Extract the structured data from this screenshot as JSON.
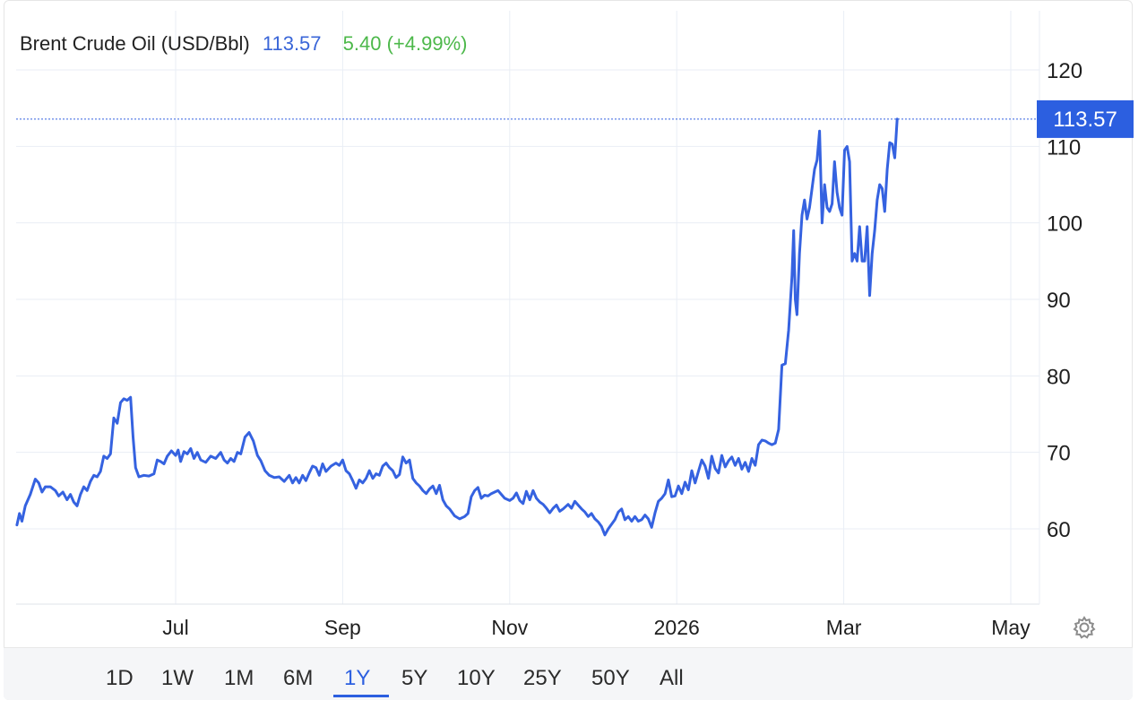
{
  "header": {
    "name": "Brent Crude Oil (USD/Bbl)",
    "price": "113.57",
    "change": "5.40 (+4.99%)"
  },
  "colors": {
    "line": "#3562e0",
    "price_text": "#3a66d8",
    "change_text": "#4cb84a",
    "badge_bg": "#2c5fe0",
    "grid": "#e9eef5",
    "axis_text": "#1f1f1f"
  },
  "price_badge": "113.57",
  "ranges": [
    "1D",
    "1W",
    "1M",
    "6M",
    "1Y",
    "5Y",
    "10Y",
    "25Y",
    "50Y",
    "All"
  ],
  "active_range": "1Y",
  "icons": {
    "settings": "gear-icon"
  },
  "chart_data": {
    "type": "line",
    "title": "Brent Crude Oil (USD/Bbl)",
    "ylim": [
      50,
      123
    ],
    "y_ticks": [
      60,
      70,
      80,
      90,
      100,
      110,
      120
    ],
    "x_ticks": [
      {
        "label": "Jul",
        "x": 1.0
      },
      {
        "label": "Sep",
        "x": 3.0
      },
      {
        "label": "Nov",
        "x": 5.0
      },
      {
        "label": "2026",
        "x": 7.0
      },
      {
        "label": "Mar",
        "x": 9.0
      },
      {
        "label": "May",
        "x": 11.0
      }
    ],
    "xlim": [
      -0.9,
      11.3
    ],
    "grid": true,
    "current_value": 113.57,
    "series": [
      {
        "values": [
          [
            -0.9,
            60.5
          ],
          [
            -0.87,
            62.0
          ],
          [
            -0.84,
            61.0
          ],
          [
            -0.8,
            63.0
          ],
          [
            -0.74,
            64.5
          ],
          [
            -0.68,
            66.5
          ],
          [
            -0.64,
            66.0
          ],
          [
            -0.6,
            64.8
          ],
          [
            -0.56,
            65.5
          ],
          [
            -0.5,
            65.5
          ],
          [
            -0.44,
            65.0
          ],
          [
            -0.4,
            64.3
          ],
          [
            -0.35,
            64.8
          ],
          [
            -0.3,
            63.8
          ],
          [
            -0.26,
            64.5
          ],
          [
            -0.22,
            63.5
          ],
          [
            -0.18,
            63.0
          ],
          [
            -0.14,
            64.5
          ],
          [
            -0.1,
            65.5
          ],
          [
            -0.06,
            65.0
          ],
          [
            -0.02,
            66.2
          ],
          [
            0.02,
            67.0
          ],
          [
            0.06,
            66.8
          ],
          [
            0.1,
            67.5
          ],
          [
            0.14,
            69.5
          ],
          [
            0.18,
            69.2
          ],
          [
            0.22,
            69.8
          ],
          [
            0.26,
            74.5
          ],
          [
            0.3,
            73.8
          ],
          [
            0.34,
            76.5
          ],
          [
            0.38,
            77.0
          ],
          [
            0.42,
            76.8
          ],
          [
            0.46,
            77.2
          ],
          [
            0.49,
            72.0
          ],
          [
            0.52,
            68.0
          ],
          [
            0.56,
            66.8
          ],
          [
            0.62,
            67.0
          ],
          [
            0.68,
            66.9
          ],
          [
            0.74,
            67.2
          ],
          [
            0.78,
            69.0
          ],
          [
            0.82,
            68.8
          ],
          [
            0.86,
            68.5
          ],
          [
            0.9,
            69.5
          ],
          [
            0.95,
            70.2
          ],
          [
            1.0,
            69.6
          ],
          [
            1.03,
            70.3
          ],
          [
            1.06,
            68.8
          ],
          [
            1.1,
            70.1
          ],
          [
            1.14,
            69.8
          ],
          [
            1.18,
            70.5
          ],
          [
            1.22,
            69.2
          ],
          [
            1.26,
            70.0
          ],
          [
            1.3,
            69.0
          ],
          [
            1.36,
            68.7
          ],
          [
            1.42,
            69.5
          ],
          [
            1.48,
            69.2
          ],
          [
            1.54,
            70.0
          ],
          [
            1.58,
            69.0
          ],
          [
            1.62,
            68.6
          ],
          [
            1.66,
            69.2
          ],
          [
            1.7,
            68.8
          ],
          [
            1.74,
            70.0
          ],
          [
            1.78,
            69.8
          ],
          [
            1.83,
            72.0
          ],
          [
            1.88,
            72.6
          ],
          [
            1.93,
            71.5
          ],
          [
            1.98,
            69.6
          ],
          [
            2.02,
            68.9
          ],
          [
            2.07,
            67.6
          ],
          [
            2.12,
            67.0
          ],
          [
            2.18,
            66.7
          ],
          [
            2.24,
            66.8
          ],
          [
            2.3,
            66.2
          ],
          [
            2.36,
            67.0
          ],
          [
            2.4,
            66.0
          ],
          [
            2.44,
            66.7
          ],
          [
            2.48,
            66.0
          ],
          [
            2.52,
            67.0
          ],
          [
            2.56,
            66.3
          ],
          [
            2.6,
            67.3
          ],
          [
            2.64,
            68.2
          ],
          [
            2.68,
            68.0
          ],
          [
            2.72,
            67.0
          ],
          [
            2.76,
            68.5
          ],
          [
            2.8,
            67.5
          ],
          [
            2.86,
            68.2
          ],
          [
            2.92,
            68.6
          ],
          [
            2.96,
            68.3
          ],
          [
            3.0,
            69.0
          ],
          [
            3.04,
            67.6
          ],
          [
            3.08,
            67.2
          ],
          [
            3.12,
            66.3
          ],
          [
            3.16,
            65.3
          ],
          [
            3.2,
            66.4
          ],
          [
            3.24,
            66.0
          ],
          [
            3.28,
            66.6
          ],
          [
            3.32,
            67.6
          ],
          [
            3.36,
            66.6
          ],
          [
            3.4,
            67.2
          ],
          [
            3.44,
            67.0
          ],
          [
            3.48,
            68.2
          ],
          [
            3.52,
            68.6
          ],
          [
            3.56,
            68.0
          ],
          [
            3.6,
            67.6
          ],
          [
            3.64,
            66.7
          ],
          [
            3.68,
            67.1
          ],
          [
            3.72,
            69.4
          ],
          [
            3.76,
            68.6
          ],
          [
            3.8,
            69.0
          ],
          [
            3.84,
            66.6
          ],
          [
            3.88,
            66.0
          ],
          [
            3.92,
            65.6
          ],
          [
            3.96,
            65.0
          ],
          [
            4.0,
            64.6
          ],
          [
            4.04,
            65.2
          ],
          [
            4.08,
            65.6
          ],
          [
            4.12,
            64.6
          ],
          [
            4.16,
            65.7
          ],
          [
            4.2,
            63.8
          ],
          [
            4.24,
            63.0
          ],
          [
            4.28,
            62.6
          ],
          [
            4.34,
            61.7
          ],
          [
            4.4,
            61.3
          ],
          [
            4.46,
            61.6
          ],
          [
            4.5,
            62.0
          ],
          [
            4.54,
            64.2
          ],
          [
            4.58,
            65.0
          ],
          [
            4.62,
            65.4
          ],
          [
            4.66,
            64.0
          ],
          [
            4.7,
            64.4
          ],
          [
            4.74,
            64.3
          ],
          [
            4.78,
            64.6
          ],
          [
            4.82,
            64.8
          ],
          [
            4.86,
            65.0
          ],
          [
            4.9,
            64.5
          ],
          [
            4.94,
            64.0
          ],
          [
            5.0,
            63.7
          ],
          [
            5.04,
            64.0
          ],
          [
            5.08,
            64.7
          ],
          [
            5.12,
            63.7
          ],
          [
            5.16,
            63.3
          ],
          [
            5.2,
            64.9
          ],
          [
            5.24,
            63.8
          ],
          [
            5.28,
            65.0
          ],
          [
            5.32,
            64.0
          ],
          [
            5.36,
            63.5
          ],
          [
            5.4,
            63.2
          ],
          [
            5.44,
            62.7
          ],
          [
            5.48,
            62.1
          ],
          [
            5.52,
            62.7
          ],
          [
            5.56,
            63.1
          ],
          [
            5.6,
            62.3
          ],
          [
            5.64,
            62.6
          ],
          [
            5.7,
            63.2
          ],
          [
            5.74,
            62.7
          ],
          [
            5.78,
            63.6
          ],
          [
            5.82,
            63.1
          ],
          [
            5.86,
            62.6
          ],
          [
            5.9,
            62.2
          ],
          [
            5.94,
            61.6
          ],
          [
            5.98,
            62.0
          ],
          [
            6.02,
            61.3
          ],
          [
            6.06,
            60.9
          ],
          [
            6.1,
            60.3
          ],
          [
            6.14,
            59.2
          ],
          [
            6.18,
            60.0
          ],
          [
            6.22,
            60.6
          ],
          [
            6.26,
            61.2
          ],
          [
            6.3,
            62.2
          ],
          [
            6.34,
            62.6
          ],
          [
            6.38,
            61.2
          ],
          [
            6.42,
            61.6
          ],
          [
            6.46,
            61.0
          ],
          [
            6.5,
            61.6
          ],
          [
            6.54,
            61.0
          ],
          [
            6.58,
            61.2
          ],
          [
            6.62,
            61.8
          ],
          [
            6.66,
            61.3
          ],
          [
            6.7,
            60.2
          ],
          [
            6.74,
            62.1
          ],
          [
            6.78,
            63.6
          ],
          [
            6.82,
            64.0
          ],
          [
            6.86,
            64.6
          ],
          [
            6.9,
            66.4
          ],
          [
            6.94,
            64.2
          ],
          [
            6.98,
            64.3
          ],
          [
            7.02,
            65.6
          ],
          [
            7.06,
            64.6
          ],
          [
            7.1,
            66.1
          ],
          [
            7.14,
            65.1
          ],
          [
            7.18,
            67.6
          ],
          [
            7.22,
            66.0
          ],
          [
            7.26,
            67.5
          ],
          [
            7.3,
            69.0
          ],
          [
            7.34,
            68.2
          ],
          [
            7.38,
            66.6
          ],
          [
            7.42,
            69.5
          ],
          [
            7.46,
            67.9
          ],
          [
            7.5,
            67.3
          ],
          [
            7.54,
            69.6
          ],
          [
            7.58,
            68.1
          ],
          [
            7.62,
            68.9
          ],
          [
            7.66,
            69.4
          ],
          [
            7.7,
            68.3
          ],
          [
            7.74,
            69.2
          ],
          [
            7.78,
            67.8
          ],
          [
            7.82,
            68.7
          ],
          [
            7.86,
            67.5
          ],
          [
            7.9,
            69.2
          ],
          [
            7.94,
            68.3
          ],
          [
            7.98,
            71.0
          ],
          [
            8.02,
            71.6
          ],
          [
            8.06,
            71.5
          ],
          [
            8.1,
            71.2
          ],
          [
            8.14,
            71.0
          ],
          [
            8.18,
            71.2
          ],
          [
            8.22,
            73.0
          ],
          [
            8.26,
            81.4
          ],
          [
            8.3,
            81.6
          ],
          [
            8.34,
            86.0
          ],
          [
            8.38,
            93.0
          ],
          [
            8.4,
            99.0
          ],
          [
            8.42,
            90.0
          ],
          [
            8.44,
            88.0
          ],
          [
            8.47,
            96.0
          ],
          [
            8.5,
            101.0
          ],
          [
            8.53,
            103.0
          ],
          [
            8.56,
            100.5
          ],
          [
            8.59,
            102.0
          ],
          [
            8.62,
            104.5
          ],
          [
            8.65,
            107.0
          ],
          [
            8.68,
            108.2
          ],
          [
            8.71,
            112.0
          ],
          [
            8.74,
            100.0
          ],
          [
            8.77,
            105.0
          ],
          [
            8.8,
            102.0
          ],
          [
            8.83,
            101.5
          ],
          [
            8.86,
            102.5
          ],
          [
            8.89,
            108.0
          ],
          [
            8.92,
            104.0
          ],
          [
            8.95,
            102.0
          ],
          [
            8.98,
            101.0
          ],
          [
            9.01,
            109.5
          ],
          [
            9.04,
            110.0
          ],
          [
            9.07,
            108.0
          ],
          [
            9.1,
            95.0
          ],
          [
            9.13,
            96.0
          ],
          [
            9.16,
            95.0
          ],
          [
            9.19,
            99.5
          ],
          [
            9.22,
            95.0
          ],
          [
            9.25,
            95.0
          ],
          [
            9.28,
            99.5
          ],
          [
            9.31,
            90.5
          ],
          [
            9.34,
            96.0
          ],
          [
            9.37,
            99.0
          ],
          [
            9.4,
            103.0
          ],
          [
            9.43,
            105.0
          ],
          [
            9.46,
            104.5
          ],
          [
            9.49,
            101.5
          ],
          [
            9.52,
            107.0
          ],
          [
            9.55,
            110.5
          ],
          [
            9.58,
            110.3
          ],
          [
            9.61,
            108.5
          ],
          [
            9.64,
            113.57
          ]
        ]
      }
    ]
  }
}
